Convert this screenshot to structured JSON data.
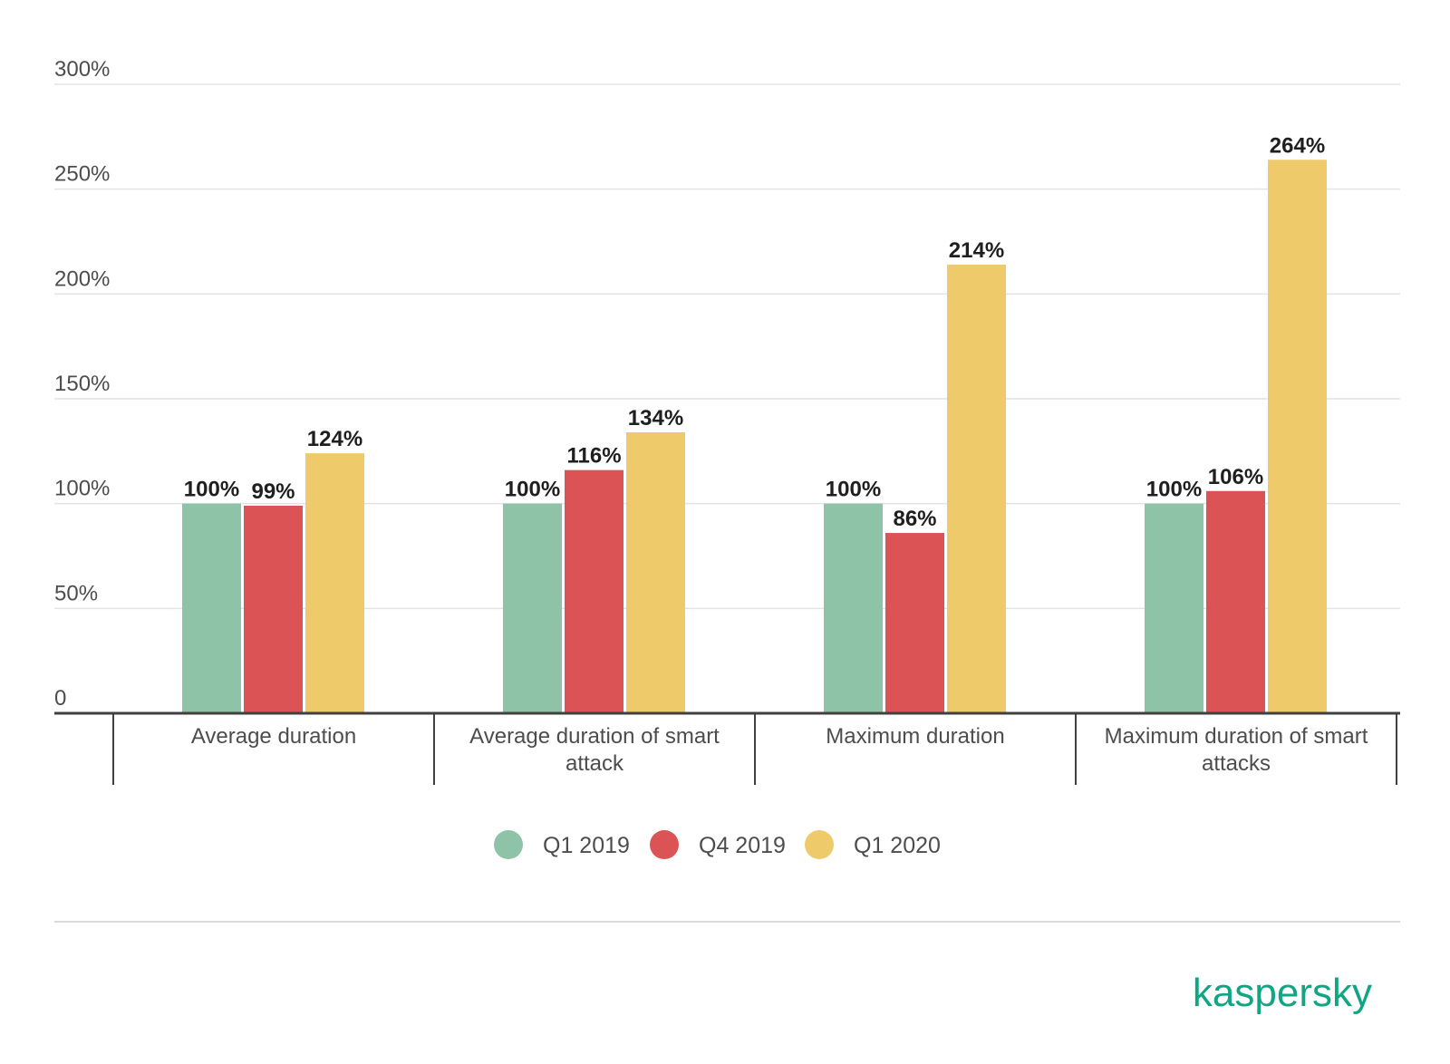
{
  "chart_data": {
    "type": "bar",
    "categories": [
      [
        "Average duration"
      ],
      [
        "Average duration of smart",
        "attack"
      ],
      [
        "Maximum duration"
      ],
      [
        "Maximum duration of smart",
        "attacks"
      ]
    ],
    "series": [
      {
        "name": "Q1 2019",
        "color": "#8fc3a7",
        "values": [
          100,
          100,
          100,
          100
        ]
      },
      {
        "name": "Q4 2019",
        "color": "#dc5356",
        "values": [
          99,
          116,
          86,
          106
        ]
      },
      {
        "name": "Q1 2020",
        "color": "#eeca6a",
        "values": [
          124,
          134,
          214,
          264
        ]
      }
    ],
    "yticks": [
      "0",
      "50%",
      "100%",
      "150%",
      "200%",
      "250%",
      "300%"
    ],
    "ylim": [
      0,
      300
    ],
    "value_suffix": "%",
    "grid": true,
    "legend_position": "bottom"
  },
  "brand": {
    "logo_text": "kaspersky",
    "color": "#11a584"
  }
}
